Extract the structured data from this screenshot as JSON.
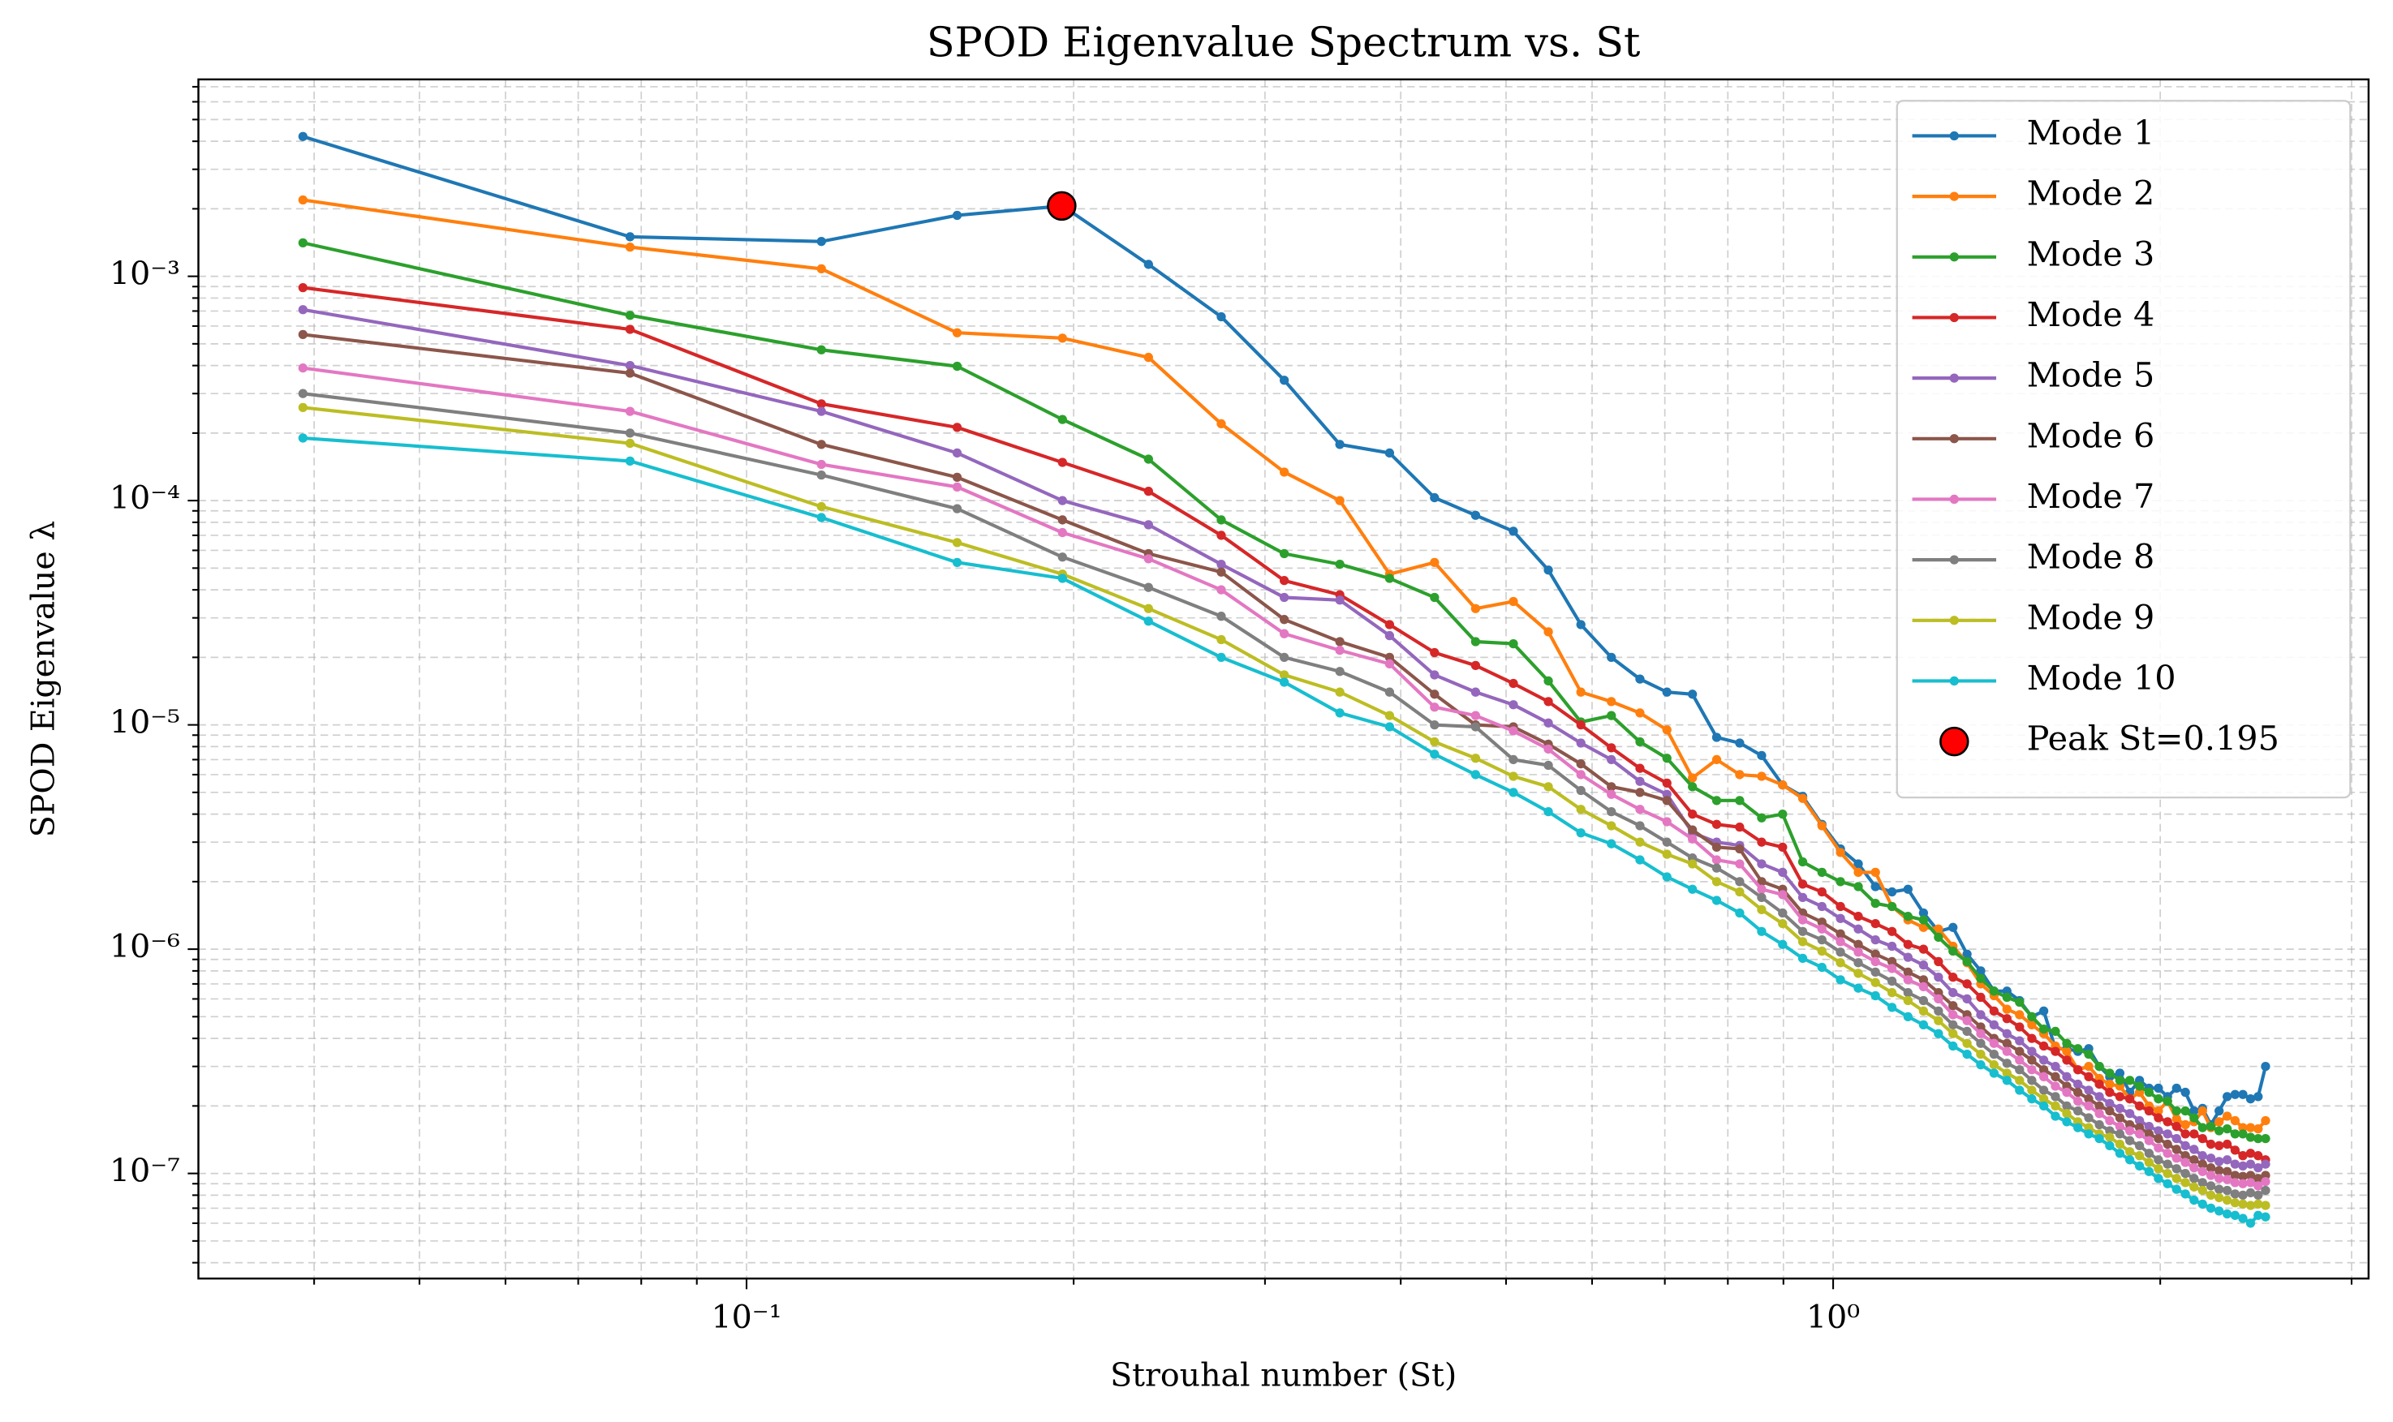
{
  "chart_data": {
    "type": "line",
    "title": "SPOD Eigenvalue Spectrum vs. St",
    "xlabel": "Strouhal number (St)",
    "ylabel": "SPOD Eigenvalue λ",
    "xscale": "log",
    "yscale": "log",
    "grid": true,
    "legend": "upper right",
    "xlim": [
      0.0313,
      3.11
    ],
    "ylim": [
      3.4e-08,
      0.00755
    ],
    "xticks": [
      {
        "value": 0.1,
        "label": "10⁻¹"
      },
      {
        "value": 1,
        "label": "10⁰"
      }
    ],
    "yticks": [
      {
        "value": 1e-07,
        "label": "10⁻⁷"
      },
      {
        "value": 1e-06,
        "label": "10⁻⁶"
      },
      {
        "value": 1e-05,
        "label": "10⁻⁵"
      },
      {
        "value": 0.0001,
        "label": "10⁻⁴"
      },
      {
        "value": 0.001,
        "label": "10⁻³"
      }
    ],
    "xminorticks": [
      0.04,
      0.05,
      0.06,
      0.07,
      0.08,
      0.09,
      0.2,
      0.3,
      0.4,
      0.5,
      0.6,
      0.7,
      0.8,
      0.9,
      2,
      3
    ],
    "yminorticks": [
      4e-08,
      5e-08,
      6e-08,
      7e-08,
      8e-08,
      9e-08,
      2e-07,
      3e-07,
      4e-07,
      5e-07,
      6e-07,
      7e-07,
      8e-07,
      9e-07,
      2e-06,
      3e-06,
      4e-06,
      5e-06,
      6e-06,
      7e-06,
      8e-06,
      9e-06,
      2e-05,
      3e-05,
      4e-05,
      5e-05,
      6e-05,
      7e-05,
      8e-05,
      9e-05,
      0.0002,
      0.0003,
      0.0004,
      0.0005,
      0.0006,
      0.0007,
      0.0008,
      0.0009,
      0.002,
      0.003,
      0.004,
      0.005,
      0.006,
      0.007
    ],
    "x": [
      0.0390625,
      0.078125,
      0.1171875,
      0.15625,
      0.1953125,
      0.234375,
      0.2734375,
      0.3125,
      0.3515625,
      0.390625,
      0.4296875,
      0.46875,
      0.5078125,
      0.546875,
      0.5859375,
      0.625,
      0.6640625,
      0.703125,
      0.7421875,
      0.78125,
      0.8203125,
      0.859375,
      0.8984375,
      0.9375,
      0.9765625,
      1.015625,
      1.0546875,
      1.09375,
      1.1328125,
      1.171875,
      1.2109375,
      1.25,
      1.2890625,
      1.328125,
      1.3671875,
      1.40625,
      1.4453125,
      1.484375,
      1.5234375,
      1.5625,
      1.6015625,
      1.640625,
      1.6796875,
      1.71875,
      1.7578125,
      1.796875,
      1.8359375,
      1.875,
      1.9140625,
      1.953125,
      1.9921875,
      2.03125,
      2.0703125,
      2.109375,
      2.1484375,
      2.1875,
      2.2265625,
      2.265625,
      2.3046875,
      2.34375,
      2.3828125,
      2.421875,
      2.4609375,
      2.5
    ],
    "series": [
      {
        "name": "Mode 1",
        "color": "#1f77b4",
        "values": [
          0.0042,
          0.0015,
          0.00143,
          0.00187,
          0.00206,
          0.00113,
          0.00066,
          0.000344,
          0.000178,
          0.000163,
          0.000103,
          8.6e-05,
          7.3e-05,
          4.9e-05,
          2.8e-05,
          2e-05,
          1.6e-05,
          1.4e-05,
          1.37e-05,
          8.8e-06,
          8.3e-06,
          7.3e-06,
          5.4e-06,
          4.8e-06,
          3.6e-06,
          2.8e-06,
          2.4e-06,
          1.9e-06,
          1.8e-06,
          1.85e-06,
          1.45e-06,
          1.2e-06,
          1.25e-06,
          9.5e-07,
          8e-07,
          6.5e-07,
          6.5e-07,
          5.9e-07,
          5e-07,
          5.3e-07,
          3.6e-07,
          3.6e-07,
          3.5e-07,
          3.6e-07,
          3e-07,
          2.7e-07,
          2.8e-07,
          2.3e-07,
          2.6e-07,
          2.4e-07,
          2.4e-07,
          2.2e-07,
          2.4e-07,
          2.3e-07,
          1.9e-07,
          1.95e-07,
          1.65e-07,
          1.9e-07,
          2.2e-07,
          2.25e-07,
          2.25e-07,
          2.15e-07,
          2.2e-07,
          3e-07
        ]
      },
      {
        "name": "Mode 2",
        "color": "#ff7f0e",
        "values": [
          0.00219,
          0.00135,
          0.00108,
          0.00056,
          0.00053,
          0.000435,
          0.00022,
          0.000134,
          0.0001,
          4.7e-05,
          5.3e-05,
          3.3e-05,
          3.55e-05,
          2.6e-05,
          1.4e-05,
          1.27e-05,
          1.13e-05,
          9.5e-06,
          5.8e-06,
          7e-06,
          6e-06,
          5.9e-06,
          5.4e-06,
          4.7e-06,
          3.55e-06,
          2.7e-06,
          2.2e-06,
          2.2e-06,
          1.55e-06,
          1.35e-06,
          1.25e-06,
          1.23e-06,
          1.03e-06,
          8.7e-07,
          7e-07,
          6.2e-07,
          5.4e-07,
          5.1e-07,
          4.6e-07,
          4.2e-07,
          3.7e-07,
          3.5e-07,
          2.9e-07,
          3e-07,
          2.65e-07,
          2.5e-07,
          2.45e-07,
          2.15e-07,
          2.3e-07,
          2e-07,
          1.9e-07,
          2.1e-07,
          1.75e-07,
          1.65e-07,
          1.7e-07,
          1.9e-07,
          1.6e-07,
          1.7e-07,
          1.8e-07,
          1.72e-07,
          1.6e-07,
          1.6e-07,
          1.58e-07,
          1.72e-07
        ]
      },
      {
        "name": "Mode 3",
        "color": "#2ca02c",
        "values": [
          0.00141,
          0.00067,
          0.00047,
          0.000397,
          0.00023,
          0.000153,
          8.2e-05,
          5.8e-05,
          5.2e-05,
          4.5e-05,
          3.7e-05,
          2.35e-05,
          2.3e-05,
          1.57e-05,
          1.03e-05,
          1.1e-05,
          8.4e-06,
          7.1e-06,
          5.3e-06,
          4.6e-06,
          4.6e-06,
          3.85e-06,
          4e-06,
          2.45e-06,
          2.2e-06,
          2e-06,
          1.9e-06,
          1.6e-06,
          1.55e-06,
          1.4e-06,
          1.35e-06,
          1.13e-06,
          9.8e-07,
          8.8e-07,
          7.4e-07,
          6.5e-07,
          6.1e-07,
          5.8e-07,
          5e-07,
          4.4e-07,
          4.3e-07,
          3.8e-07,
          3.6e-07,
          3.4e-07,
          3e-07,
          2.8e-07,
          2.6e-07,
          2.6e-07,
          2.45e-07,
          2.3e-07,
          2.15e-07,
          2.1e-07,
          1.9e-07,
          1.9e-07,
          1.77e-07,
          1.6e-07,
          1.62e-07,
          1.55e-07,
          1.58e-07,
          1.5e-07,
          1.5e-07,
          1.45e-07,
          1.43e-07,
          1.43e-07
        ]
      },
      {
        "name": "Mode 4",
        "color": "#d62728",
        "values": [
          0.00089,
          0.00058,
          0.00027,
          0.000212,
          0.000148,
          0.00011,
          7e-05,
          4.4e-05,
          3.8e-05,
          2.8e-05,
          2.1e-05,
          1.84e-05,
          1.53e-05,
          1.27e-05,
          1e-05,
          7.9e-06,
          6.4e-06,
          5.5e-06,
          4e-06,
          3.6e-06,
          3.5e-06,
          3e-06,
          2.85e-06,
          1.95e-06,
          1.8e-06,
          1.55e-06,
          1.4e-06,
          1.3e-06,
          1.2e-06,
          1.05e-06,
          1e-06,
          8.8e-07,
          7.5e-07,
          7e-07,
          6.1e-07,
          5.3e-07,
          4.9e-07,
          4.5e-07,
          4e-07,
          3.7e-07,
          3.5e-07,
          3.2e-07,
          2.9e-07,
          2.7e-07,
          2.5e-07,
          2.3e-07,
          2.2e-07,
          2.15e-07,
          2e-07,
          1.9e-07,
          1.77e-07,
          1.7e-07,
          1.62e-07,
          1.5e-07,
          1.5e-07,
          1.43e-07,
          1.35e-07,
          1.33e-07,
          1.35e-07,
          1.27e-07,
          1.2e-07,
          1.23e-07,
          1.2e-07,
          1.15e-07
        ]
      },
      {
        "name": "Mode 5",
        "color": "#9467bd",
        "values": [
          0.00071,
          0.0004,
          0.00025,
          0.000163,
          0.0001,
          7.8e-05,
          5.2e-05,
          3.7e-05,
          3.6e-05,
          2.5e-05,
          1.67e-05,
          1.4e-05,
          1.23e-05,
          1.02e-05,
          8.3e-06,
          7e-06,
          5.6e-06,
          4.9e-06,
          3.3e-06,
          3e-06,
          2.9e-06,
          2.4e-06,
          2.2e-06,
          1.7e-06,
          1.55e-06,
          1.37e-06,
          1.23e-06,
          1.1e-06,
          1.03e-06,
          9.2e-07,
          8.5e-07,
          7.5e-07,
          6.4e-07,
          6e-07,
          5.1e-07,
          4.6e-07,
          4.2e-07,
          3.9e-07,
          3.5e-07,
          3.2e-07,
          3e-07,
          2.7e-07,
          2.5e-07,
          2.35e-07,
          2.2e-07,
          2.05e-07,
          1.95e-07,
          1.85e-07,
          1.72e-07,
          1.62e-07,
          1.55e-07,
          1.5e-07,
          1.43e-07,
          1.33e-07,
          1.28e-07,
          1.2e-07,
          1.17e-07,
          1.13e-07,
          1.15e-07,
          1.1e-07,
          1.08e-07,
          1.1e-07,
          1.06e-07,
          1.1e-07
        ]
      },
      {
        "name": "Mode 6",
        "color": "#8c564b",
        "values": [
          0.00055,
          0.00037,
          0.000178,
          0.000127,
          8.2e-05,
          5.8e-05,
          4.8e-05,
          2.95e-05,
          2.35e-05,
          2e-05,
          1.37e-05,
          1e-05,
          9.8e-06,
          8.2e-06,
          6.7e-06,
          5.3e-06,
          5e-06,
          4.6e-06,
          3.4e-06,
          2.85e-06,
          2.8e-06,
          2e-06,
          1.85e-06,
          1.45e-06,
          1.32e-06,
          1.17e-06,
          1.05e-06,
          9.5e-07,
          8.8e-07,
          7.9e-07,
          7.3e-07,
          6.4e-07,
          5.6e-07,
          5.1e-07,
          4.5e-07,
          4e-07,
          3.8e-07,
          3.5e-07,
          3.2e-07,
          2.9e-07,
          2.7e-07,
          2.45e-07,
          2.3e-07,
          2.15e-07,
          2e-07,
          1.9e-07,
          1.77e-07,
          1.65e-07,
          1.6e-07,
          1.5e-07,
          1.43e-07,
          1.35e-07,
          1.28e-07,
          1.2e-07,
          1.15e-07,
          1.1e-07,
          1.06e-07,
          1.03e-07,
          1.02e-07,
          9.8e-08,
          9.7e-08,
          9.8e-08,
          9.5e-08,
          9.8e-08
        ]
      },
      {
        "name": "Mode 7",
        "color": "#e377c2",
        "values": [
          0.00039,
          0.00025,
          0.000145,
          0.000115,
          7.2e-05,
          5.5e-05,
          4e-05,
          2.55e-05,
          2.15e-05,
          1.87e-05,
          1.2e-05,
          1.1e-05,
          9.4e-06,
          7.8e-06,
          6e-06,
          4.9e-06,
          4.2e-06,
          3.7e-06,
          3.1e-06,
          2.5e-06,
          2.4e-06,
          1.85e-06,
          1.75e-06,
          1.35e-06,
          1.23e-06,
          1.08e-06,
          9.7e-07,
          8.8e-07,
          8.2e-07,
          7.3e-07,
          6.8e-07,
          6e-07,
          5.1e-07,
          4.8e-07,
          4.2e-07,
          3.8e-07,
          3.5e-07,
          3.2e-07,
          2.9e-07,
          2.7e-07,
          2.45e-07,
          2.3e-07,
          2.1e-07,
          2e-07,
          1.85e-07,
          1.72e-07,
          1.62e-07,
          1.55e-07,
          1.5e-07,
          1.4e-07,
          1.3e-07,
          1.23e-07,
          1.17e-07,
          1.12e-07,
          1.06e-07,
          1.02e-07,
          9.8e-08,
          9.5e-08,
          9.4e-08,
          9.1e-08,
          9e-08,
          9.1e-08,
          8.8e-08,
          9.2e-08
        ]
      },
      {
        "name": "Mode 8",
        "color": "#7f7f7f",
        "values": [
          0.0003,
          0.0002,
          0.00013,
          9.2e-05,
          5.6e-05,
          4.1e-05,
          3.05e-05,
          2e-05,
          1.73e-05,
          1.4e-05,
          1e-05,
          9.8e-06,
          7e-06,
          6.6e-06,
          5.1e-06,
          4.1e-06,
          3.55e-06,
          3e-06,
          2.55e-06,
          2.3e-06,
          2e-06,
          1.7e-06,
          1.45e-06,
          1.2e-06,
          1.1e-06,
          9.7e-07,
          8.7e-07,
          7.9e-07,
          7.2e-07,
          6.4e-07,
          5.9e-07,
          5.3e-07,
          4.6e-07,
          4.3e-07,
          3.8e-07,
          3.4e-07,
          3.1e-07,
          2.9e-07,
          2.6e-07,
          2.35e-07,
          2.2e-07,
          2e-07,
          1.9e-07,
          1.77e-07,
          1.65e-07,
          1.55e-07,
          1.5e-07,
          1.4e-07,
          1.33e-07,
          1.23e-07,
          1.15e-07,
          1.1e-07,
          1.05e-07,
          1e-07,
          9.5e-08,
          9.1e-08,
          8.8e-08,
          8.5e-08,
          8.4e-08,
          8.1e-08,
          8e-08,
          8.2e-08,
          8e-08,
          8.4e-08
        ]
      },
      {
        "name": "Mode 9",
        "color": "#bcbd22",
        "values": [
          0.00026,
          0.00018,
          9.4e-05,
          6.5e-05,
          4.7e-05,
          3.3e-05,
          2.4e-05,
          1.67e-05,
          1.4e-05,
          1.1e-05,
          8.4e-06,
          7.1e-06,
          5.9e-06,
          5.3e-06,
          4.2e-06,
          3.55e-06,
          3e-06,
          2.65e-06,
          2.4e-06,
          2e-06,
          1.8e-06,
          1.5e-06,
          1.3e-06,
          1.08e-06,
          9.8e-07,
          8.7e-07,
          7.8e-07,
          7.1e-07,
          6.4e-07,
          5.9e-07,
          5.3e-07,
          4.8e-07,
          4.2e-07,
          3.8e-07,
          3.4e-07,
          3.05e-07,
          2.8e-07,
          2.6e-07,
          2.35e-07,
          2.15e-07,
          2e-07,
          1.85e-07,
          1.7e-07,
          1.6e-07,
          1.5e-07,
          1.45e-07,
          1.35e-07,
          1.25e-07,
          1.2e-07,
          1.12e-07,
          1.05e-07,
          1e-07,
          9.5e-08,
          9.1e-08,
          8.7e-08,
          8.4e-08,
          8e-08,
          7.8e-08,
          7.6e-08,
          7.4e-08,
          7.3e-08,
          7.2e-08,
          7.3e-08,
          7.2e-08
        ]
      },
      {
        "name": "Mode 10",
        "color": "#17becf",
        "values": [
          0.00019,
          0.00015,
          8.4e-05,
          5.3e-05,
          4.5e-05,
          2.9e-05,
          2e-05,
          1.55e-05,
          1.13e-05,
          9.8e-06,
          7.4e-06,
          6e-06,
          5e-06,
          4.1e-06,
          3.3e-06,
          2.95e-06,
          2.5e-06,
          2.1e-06,
          1.85e-06,
          1.65e-06,
          1.45e-06,
          1.2e-06,
          1.05e-06,
          9.1e-07,
          8.3e-07,
          7.3e-07,
          6.7e-07,
          6.2e-07,
          5.5e-07,
          5e-07,
          4.6e-07,
          4.2e-07,
          3.7e-07,
          3.4e-07,
          3.05e-07,
          2.8e-07,
          2.6e-07,
          2.35e-07,
          2.15e-07,
          2e-07,
          1.8e-07,
          1.7e-07,
          1.6e-07,
          1.5e-07,
          1.43e-07,
          1.33e-07,
          1.23e-07,
          1.15e-07,
          1.08e-07,
          1.02e-07,
          9.5e-08,
          9e-08,
          8.5e-08,
          8.1e-08,
          7.6e-08,
          7.3e-08,
          7e-08,
          6.8e-08,
          6.6e-08,
          6.5e-08,
          6.3e-08,
          6e-08,
          6.5e-08,
          6.4e-08
        ]
      }
    ],
    "peak": {
      "name": "Peak St=0.195",
      "x": 0.195,
      "y": 0.00206,
      "color": "#ff0000"
    }
  }
}
